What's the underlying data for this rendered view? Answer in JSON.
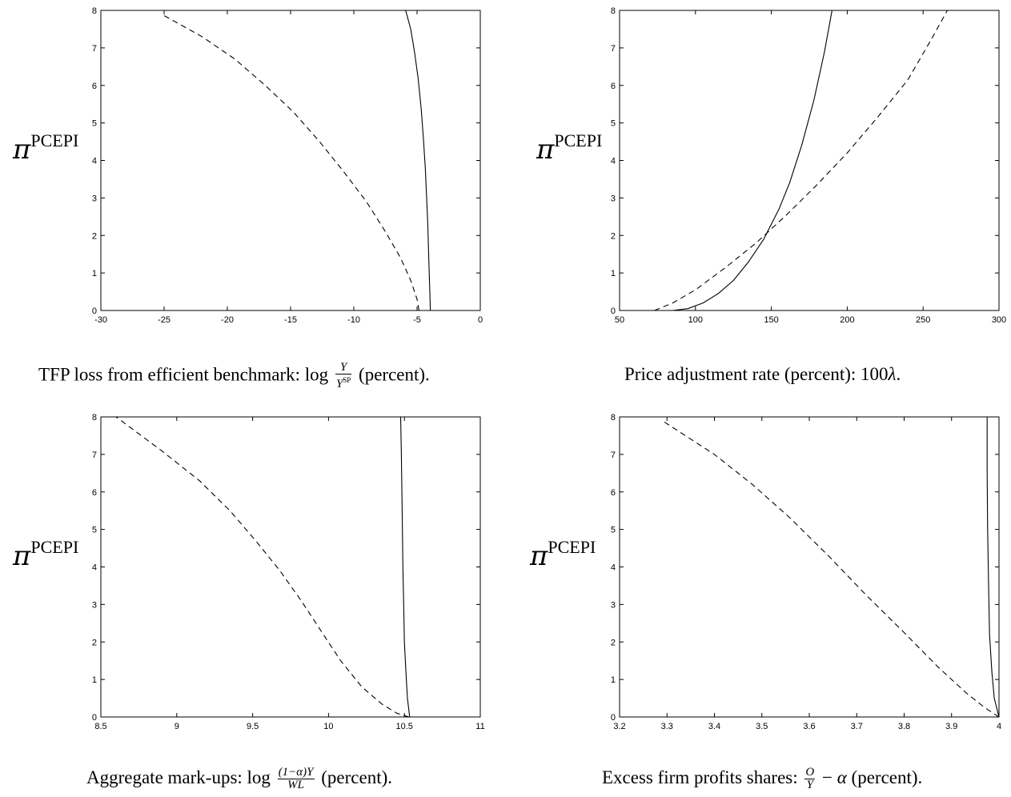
{
  "chart_data": [
    {
      "type": "line",
      "ylabel": "π",
      "ylabel_sup": "PCEPI",
      "xlim": [
        -30,
        0
      ],
      "ylim": [
        0,
        8
      ],
      "xticks": [
        "-30",
        "-25",
        "-20",
        "-15",
        "-10",
        "-5",
        "0"
      ],
      "yticks": [
        "0",
        "1",
        "2",
        "3",
        "4",
        "5",
        "6",
        "7",
        "8"
      ],
      "grid": false,
      "caption": {
        "prefix": "TFP loss from efficient benchmark: log",
        "num": "Y",
        "den": "Y",
        "den_sup": "SP",
        "suffix": "(percent)."
      },
      "series": [
        {
          "style": "solid",
          "x": [
            -3.95,
            -3.97,
            -4.02,
            -4.08,
            -4.15,
            -4.24,
            -4.35,
            -4.5,
            -4.68,
            -4.92,
            -5.2,
            -5.5,
            -5.9
          ],
          "y": [
            0,
            0.25,
            0.8,
            1.5,
            2.3,
            3.0,
            3.8,
            4.6,
            5.4,
            6.2,
            6.9,
            7.5,
            8.0
          ]
        },
        {
          "style": "dashed",
          "x": [
            -4.85,
            -5.0,
            -5.5,
            -6.3,
            -7.5,
            -9.0,
            -10.8,
            -12.7,
            -14.8,
            -17.0,
            -19.4,
            -22.0,
            -25.2
          ],
          "y": [
            0,
            0.3,
            0.8,
            1.4,
            2.1,
            2.9,
            3.7,
            4.5,
            5.3,
            6.0,
            6.7,
            7.3,
            7.9
          ]
        }
      ]
    },
    {
      "type": "line",
      "ylabel": "π",
      "ylabel_sup": "PCEPI",
      "xlim": [
        50,
        300
      ],
      "ylim": [
        0,
        8
      ],
      "xticks": [
        "50",
        "100",
        "150",
        "200",
        "250",
        "300"
      ],
      "yticks": [
        "0",
        "1",
        "2",
        "3",
        "4",
        "5",
        "6",
        "7",
        "8"
      ],
      "grid": false,
      "caption": {
        "prefix": "Price adjustment rate (percent): 100",
        "lambda": "λ",
        "suffix": "."
      },
      "series": [
        {
          "style": "solid",
          "x": [
            85,
            95,
            105,
            115,
            125,
            135,
            145,
            155,
            162,
            170,
            178,
            185,
            190
          ],
          "y": [
            0,
            0.05,
            0.2,
            0.45,
            0.8,
            1.3,
            1.9,
            2.7,
            3.4,
            4.4,
            5.6,
            6.9,
            8.0
          ]
        },
        {
          "style": "dashed",
          "x": [
            73,
            85,
            100,
            120,
            140,
            160,
            180,
            200,
            220,
            240,
            255,
            266
          ],
          "y": [
            0,
            0.2,
            0.55,
            1.15,
            1.8,
            2.55,
            3.35,
            4.2,
            5.15,
            6.15,
            7.2,
            8.0
          ]
        }
      ]
    },
    {
      "type": "line",
      "ylabel": "π",
      "ylabel_sup": "PCEPI",
      "xlim": [
        8.5,
        11
      ],
      "ylim": [
        0,
        8
      ],
      "xticks": [
        "8.5",
        "9",
        "9.5",
        "10",
        "10.5",
        "11"
      ],
      "yticks": [
        "0",
        "1",
        "2",
        "3",
        "4",
        "5",
        "6",
        "7",
        "8"
      ],
      "grid": false,
      "caption": {
        "prefix": "Aggregate mark-ups: log",
        "num": "(1−α)Y",
        "den": "WL",
        "suffix": "(percent)."
      },
      "series": [
        {
          "style": "solid",
          "x": [
            10.535,
            10.52,
            10.51,
            10.5,
            10.495,
            10.49,
            10.485,
            10.48,
            10.475
          ],
          "y": [
            0,
            0.5,
            1.2,
            2.0,
            3.0,
            4.0,
            5.5,
            7.0,
            8.0
          ]
        },
        {
          "style": "dashed",
          "x": [
            10.53,
            10.45,
            10.35,
            10.22,
            10.08,
            9.95,
            9.82,
            9.68,
            9.52,
            9.35,
            9.15,
            8.9,
            8.6
          ],
          "y": [
            0,
            0.1,
            0.35,
            0.8,
            1.5,
            2.3,
            3.1,
            3.9,
            4.7,
            5.5,
            6.3,
            7.1,
            8.0
          ]
        }
      ]
    },
    {
      "type": "line",
      "ylabel": "π",
      "ylabel_sup": "PCEPI",
      "xlim": [
        3.2,
        4
      ],
      "ylim": [
        0,
        8
      ],
      "xticks": [
        "3.2",
        "3.3",
        "3.4",
        "3.5",
        "3.6",
        "3.7",
        "3.8",
        "3.9",
        "4"
      ],
      "yticks": [
        "0",
        "1",
        "2",
        "3",
        "4",
        "5",
        "6",
        "7",
        "8"
      ],
      "grid": false,
      "caption": {
        "prefix": "Excess firm profits shares:",
        "num": "O",
        "den": "Y",
        "suffix_a": "− ",
        "alpha": "α",
        "suffix": " (percent)."
      },
      "series": [
        {
          "style": "solid",
          "x": [
            4.0,
            3.99,
            3.985,
            3.98,
            3.978,
            3.976,
            3.975,
            3.975
          ],
          "y": [
            0,
            0.5,
            1.2,
            2.2,
            3.5,
            5.0,
            6.5,
            8.0
          ]
        },
        {
          "style": "dashed",
          "x": [
            4.0,
            3.97,
            3.93,
            3.87,
            3.8,
            3.72,
            3.64,
            3.56,
            3.48,
            3.4,
            3.29
          ],
          "y": [
            0,
            0.25,
            0.65,
            1.35,
            2.25,
            3.25,
            4.3,
            5.3,
            6.2,
            7.0,
            7.9
          ]
        }
      ]
    }
  ]
}
